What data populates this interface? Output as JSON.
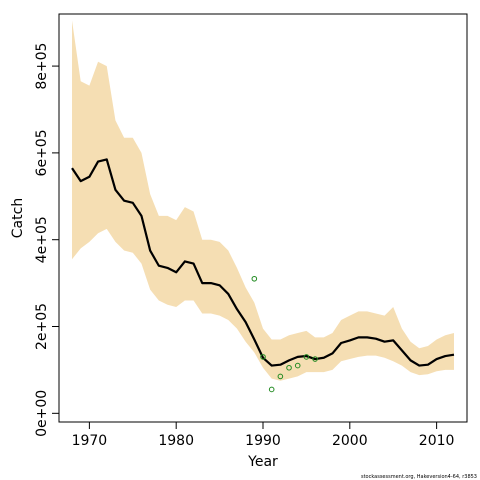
{
  "chart_data": {
    "type": "line",
    "xlabel": "Year",
    "ylabel": "Catch",
    "xlim": [
      1966.5,
      2013.5
    ],
    "ylim": [
      -20000,
      920000
    ],
    "xticks": [
      1970,
      1980,
      1990,
      2000,
      2010
    ],
    "xtick_labels": [
      "1970",
      "1980",
      "1990",
      "2000",
      "2010"
    ],
    "yticks": [
      0,
      200000,
      400000,
      600000,
      800000
    ],
    "ytick_labels": [
      "0e+00",
      "2e+05",
      "4e+05",
      "6e+05",
      "8e+05"
    ],
    "grid": false,
    "band": {
      "color": "#f5deb3",
      "x": [
        1968,
        1969,
        1970,
        1971,
        1972,
        1973,
        1974,
        1975,
        1976,
        1977,
        1978,
        1979,
        1980,
        1981,
        1982,
        1983,
        1984,
        1985,
        1986,
        1987,
        1988,
        1989,
        1990,
        1991,
        1992,
        1993,
        1994,
        1995,
        1996,
        1997,
        1998,
        1999,
        2000,
        2001,
        2002,
        2003,
        2004,
        2005,
        2006,
        2007,
        2008,
        2009,
        2010,
        2011,
        2012
      ],
      "upper": [
        905000,
        765000,
        755000,
        810000,
        800000,
        675000,
        635000,
        635000,
        600000,
        505000,
        455000,
        455000,
        445000,
        475000,
        465000,
        400000,
        400000,
        395000,
        375000,
        335000,
        290000,
        255000,
        195000,
        170000,
        170000,
        180000,
        185000,
        190000,
        175000,
        175000,
        185000,
        215000,
        225000,
        235000,
        235000,
        230000,
        225000,
        245000,
        195000,
        165000,
        150000,
        155000,
        170000,
        180000,
        185000
      ],
      "lower": [
        355000,
        380000,
        395000,
        415000,
        425000,
        395000,
        375000,
        370000,
        345000,
        285000,
        260000,
        250000,
        245000,
        260000,
        260000,
        230000,
        230000,
        225000,
        215000,
        195000,
        165000,
        140000,
        105000,
        80000,
        75000,
        80000,
        85000,
        95000,
        95000,
        95000,
        100000,
        120000,
        125000,
        130000,
        133000,
        133000,
        128000,
        120000,
        110000,
        95000,
        88000,
        90000,
        97000,
        100000,
        100000
      ]
    },
    "series": [
      {
        "color": "#000000",
        "x": [
          1968,
          1969,
          1970,
          1971,
          1972,
          1973,
          1974,
          1975,
          1976,
          1977,
          1978,
          1979,
          1980,
          1981,
          1982,
          1983,
          1984,
          1985,
          1986,
          1987,
          1988,
          1989,
          1990,
          1991,
          1992,
          1993,
          1994,
          1995,
          1996,
          1997,
          1998,
          1999,
          2000,
          2001,
          2002,
          2003,
          2004,
          2005,
          2006,
          2007,
          2008,
          2009,
          2010,
          2011,
          2012
        ],
        "values": [
          565000,
          535000,
          545000,
          580000,
          585000,
          515000,
          490000,
          485000,
          455000,
          375000,
          340000,
          335000,
          325000,
          350000,
          345000,
          300000,
          300000,
          295000,
          275000,
          240000,
          210000,
          170000,
          128000,
          110000,
          112000,
          122000,
          130000,
          132000,
          125000,
          128000,
          138000,
          162000,
          168000,
          175000,
          175000,
          172000,
          165000,
          168000,
          145000,
          122000,
          110000,
          112000,
          125000,
          132000,
          135000
        ]
      }
    ],
    "points": {
      "color": "#228b22",
      "x": [
        1989,
        1990,
        1991,
        1992,
        1993,
        1994,
        1995,
        1996
      ],
      "y": [
        310000,
        130000,
        55000,
        85000,
        105000,
        110000,
        130000,
        125000
      ]
    },
    "credit": "stockassessment.org, Hakeversion4-64, r3853"
  }
}
